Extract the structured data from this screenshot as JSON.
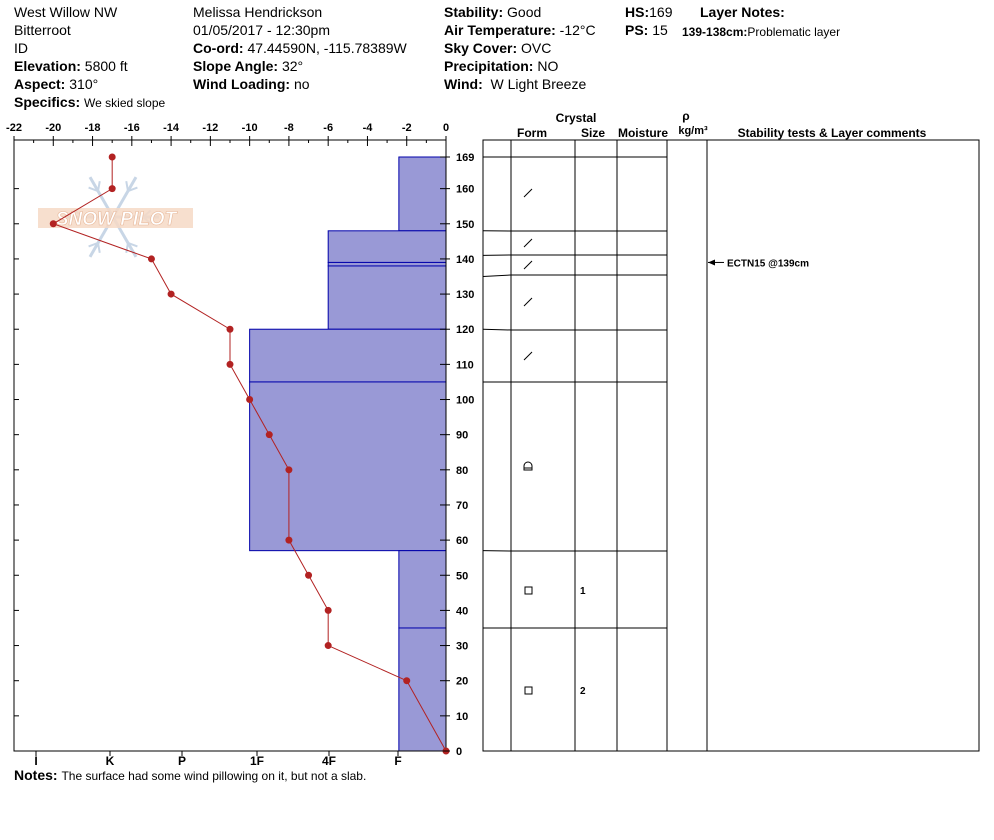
{
  "header": {
    "location": "West Willow NW",
    "range": "Bitterroot",
    "state": "ID",
    "elevation_label": "Elevation:",
    "elevation_value": "5800 ft",
    "aspect_label": "Aspect:",
    "aspect_value": "310°",
    "specifics_label": "Specifics:",
    "specifics_value": "We skied slope",
    "observer": "Melissa Hendrickson",
    "datetime": "01/05/2017 - 12:30pm",
    "coord_label": "Co-ord:",
    "coord_value": "47.44590N, -115.78389W",
    "slope_label": "Slope Angle:",
    "slope_value": "32°",
    "wind_loading_label": "Wind Loading:",
    "wind_loading_value": "no",
    "stability_label": "Stability:",
    "stability_value": "Good",
    "air_temp_label": "Air Temperature:",
    "air_temp_value": "-12°C",
    "sky_label": "Sky Cover:",
    "sky_value": "OVC",
    "precip_label": "Precipitation:",
    "precip_value": "NO",
    "wind_label": "Wind:",
    "wind_value": "W Light Breeze",
    "hs_label": "HS:",
    "hs_value": "169",
    "ps_label": "PS:",
    "ps_value": "15",
    "layer_notes_label": "Layer Notes:",
    "layer_note_range": "139-138cm:",
    "layer_note_text": "Problematic layer"
  },
  "notes": {
    "label": "Notes:",
    "text": "The surface had some wind pillowing on it, but not a slab."
  },
  "watermark": {
    "text": "SNOW PILOT"
  },
  "colors": {
    "hardness_fill": "#9999d6",
    "hardness_line": "#0000aa",
    "temp_line": "#b22222",
    "temp_point": "#b22222"
  },
  "chart_data": {
    "type": "line",
    "temperature_axis": {
      "ticks": [
        "-22",
        "-20",
        "-18",
        "-16",
        "-14",
        "-12",
        "-10",
        "-8",
        "-6",
        "-4",
        "-2",
        "0"
      ],
      "range": [
        -22,
        0
      ]
    },
    "height_axis": {
      "ticks": [
        "169",
        "160",
        "150",
        "140",
        "130",
        "120",
        "110",
        "100",
        "90",
        "80",
        "70",
        "60",
        "50",
        "40",
        "30",
        "20",
        "10",
        "0"
      ],
      "range": [
        0,
        169
      ]
    },
    "hardness_axis": {
      "labels": [
        "I",
        "K",
        "P",
        "1F",
        "4F",
        "F"
      ]
    },
    "temperature_profile": [
      {
        "height": 169,
        "temp": -17
      },
      {
        "height": 160,
        "temp": -17
      },
      {
        "height": 150,
        "temp": -20
      },
      {
        "height": 140,
        "temp": -15
      },
      {
        "height": 130,
        "temp": -14
      },
      {
        "height": 120,
        "temp": -11
      },
      {
        "height": 110,
        "temp": -11
      },
      {
        "height": 100,
        "temp": -10
      },
      {
        "height": 90,
        "temp": -9
      },
      {
        "height": 80,
        "temp": -8
      },
      {
        "height": 60,
        "temp": -8
      },
      {
        "height": 50,
        "temp": -7
      },
      {
        "height": 40,
        "temp": -6
      },
      {
        "height": 30,
        "temp": -6
      },
      {
        "height": 20,
        "temp": -2
      },
      {
        "height": 0,
        "temp": 0
      }
    ],
    "hardness_profile": [
      {
        "top": 169,
        "bottom": 148,
        "temp_equiv": -2.4
      },
      {
        "top": 148,
        "bottom": 139,
        "temp_equiv": -6
      },
      {
        "top": 139,
        "bottom": 138,
        "temp_equiv": -6
      },
      {
        "top": 138,
        "bottom": 120,
        "temp_equiv": -6
      },
      {
        "top": 120,
        "bottom": 105,
        "temp_equiv": -10
      },
      {
        "top": 105,
        "bottom": 57,
        "temp_equiv": -10
      },
      {
        "top": 57,
        "bottom": 35,
        "temp_equiv": -2.4
      },
      {
        "top": 35,
        "bottom": 0,
        "temp_equiv": -2.4
      }
    ],
    "layer_table": {
      "headers": {
        "crystal": "Crystal",
        "form": "Form",
        "size": "Size",
        "moisture": "Moisture",
        "rho": "ρ",
        "density_unit": "kg/m³",
        "comments": "Stability tests & Layer comments"
      },
      "boundaries_cm": [
        169,
        148,
        141,
        135,
        120,
        105,
        57,
        35,
        0
      ],
      "layers": [
        {
          "mid": 158,
          "form_icon": "slash-icon",
          "size": ""
        },
        {
          "mid": 145,
          "form_icon": "slash-icon",
          "size": ""
        },
        {
          "mid": 138,
          "form_icon": "slash-icon",
          "size": ""
        },
        {
          "mid": 127,
          "form_icon": "slash-icon",
          "size": ""
        },
        {
          "mid": 112,
          "form_icon": "slash-icon",
          "size": ""
        },
        {
          "mid": 81,
          "form_icon": "rounded-grain-icon",
          "size": ""
        },
        {
          "mid": 46,
          "form_icon": "square-icon",
          "size": "1"
        },
        {
          "mid": 17.5,
          "form_icon": "square-icon",
          "size": "2"
        }
      ],
      "stability_tests": [
        {
          "height": 139,
          "text": "ECTN15 @139cm"
        }
      ]
    }
  }
}
